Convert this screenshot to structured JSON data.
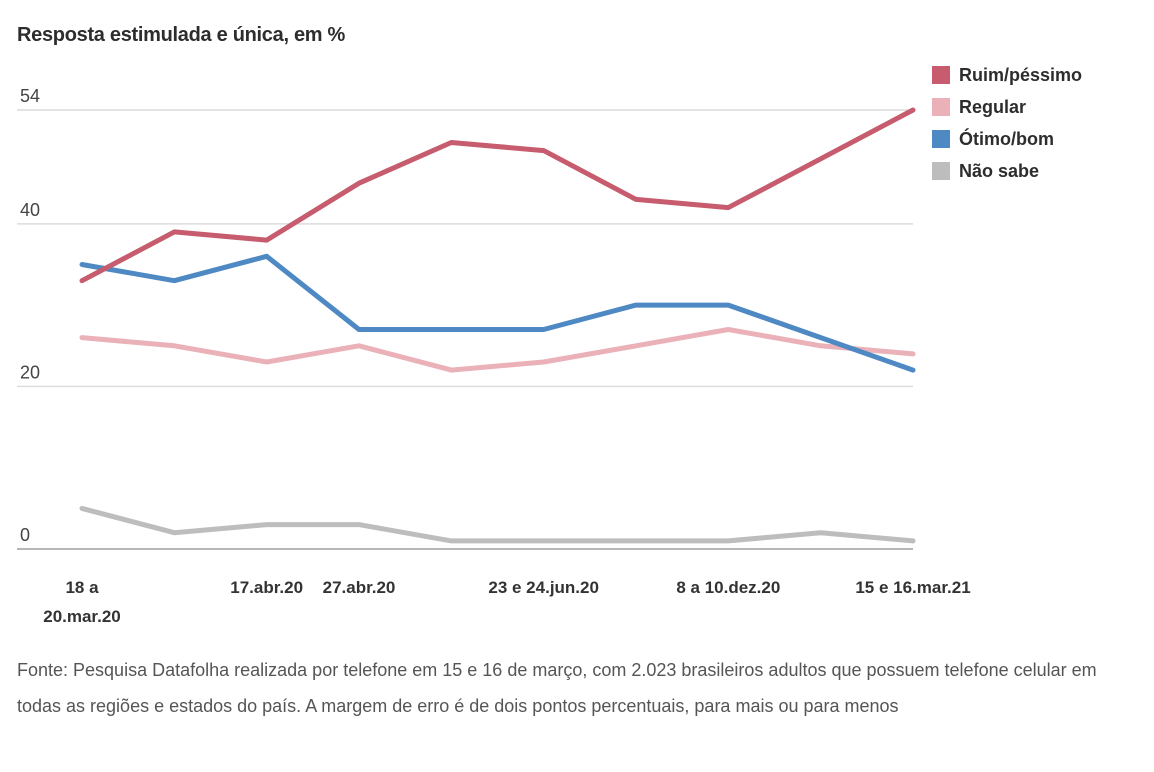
{
  "chart_data": {
    "type": "line",
    "title": "Resposta estimulada e única, em %",
    "xlabel": "",
    "ylabel": "",
    "ylim": [
      0,
      54
    ],
    "yticks": [
      0,
      20,
      40,
      54
    ],
    "grid": true,
    "legend_position": "top-right",
    "x_points": 10,
    "x_tick_labels": [
      {
        "index": 0,
        "lines": [
          "18 a",
          "20.mar.20"
        ]
      },
      {
        "index": 2,
        "lines": [
          "17.abr.20"
        ]
      },
      {
        "index": 3,
        "lines": [
          "27.abr.20"
        ]
      },
      {
        "index": 5,
        "lines": [
          "23 e 24.jun.20"
        ]
      },
      {
        "index": 7,
        "lines": [
          "8 a 10.dez.20"
        ]
      },
      {
        "index": 9,
        "lines": [
          "15 e 16.mar.21"
        ]
      }
    ],
    "series": [
      {
        "name": "Ruim/péssimo",
        "color": "#C65C6E",
        "values": [
          33,
          39,
          38,
          45,
          50,
          49,
          43,
          42,
          48,
          54
        ]
      },
      {
        "name": "Regular",
        "color": "#EAB1B8",
        "values": [
          26,
          25,
          23,
          25,
          22,
          23,
          25,
          27,
          25,
          24
        ]
      },
      {
        "name": "Ótimo/bom",
        "color": "#4E89C4",
        "values": [
          35,
          33,
          36,
          27,
          27,
          27,
          30,
          30,
          26,
          22
        ]
      },
      {
        "name": "Não sabe",
        "color": "#BDBDBD",
        "values": [
          5,
          2,
          3,
          3,
          1,
          1,
          1,
          1,
          2,
          1
        ]
      }
    ]
  },
  "footer": {
    "source": "Fonte: Pesquisa Datafolha realizada por telefone em 15 e 16 de março, com 2.023 brasileiros adultos que possuem telefone celular em todas as regiões e estados do país. A margem de erro é de dois pontos percentuais, para mais ou para menos"
  }
}
